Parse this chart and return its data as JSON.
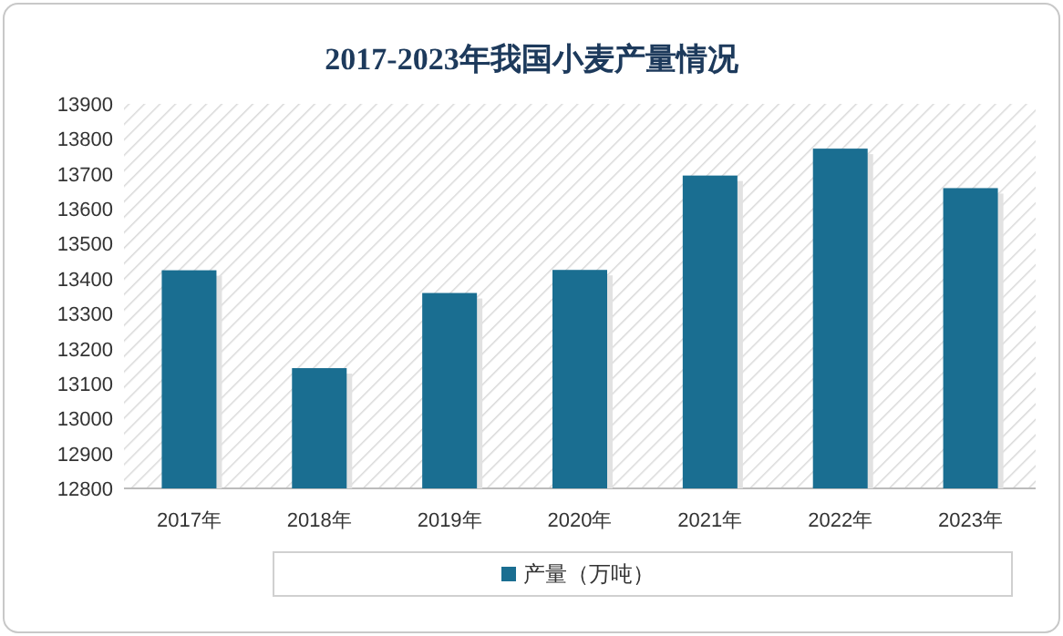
{
  "chart_data": {
    "type": "bar",
    "title": "2017-2023年我国小麦产量情况",
    "categories": [
      "2017年",
      "2018年",
      "2019年",
      "2020年",
      "2021年",
      "2022年",
      "2023年"
    ],
    "series": [
      {
        "name": "产量（万吨）",
        "color": "#1a6e91",
        "values": [
          13424,
          13144,
          13359,
          13425,
          13695,
          13772,
          13659
        ]
      }
    ],
    "ylim": [
      12800,
      13900
    ],
    "yticks": [
      12800,
      12900,
      13000,
      13100,
      13200,
      13300,
      13400,
      13500,
      13600,
      13700,
      13800,
      13900
    ],
    "grid": false,
    "legend": "bottom"
  }
}
